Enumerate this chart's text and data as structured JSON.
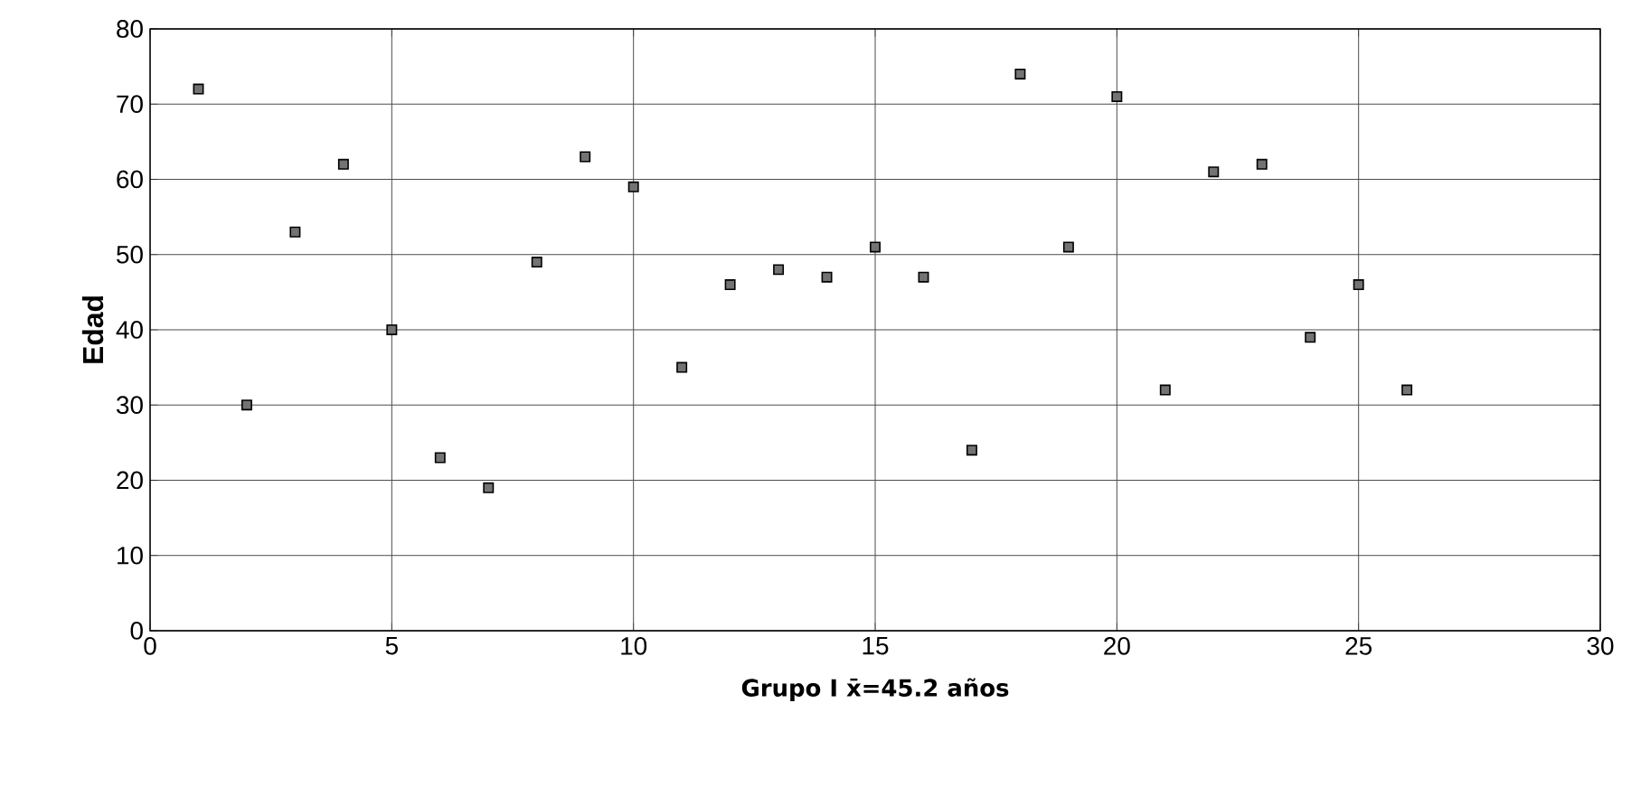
{
  "chart_data": {
    "type": "scatter",
    "xlabel": "Grupo I x̄=45.2 años",
    "ylabel": "Edad",
    "x": [
      1,
      2,
      3,
      4,
      5,
      6,
      7,
      8,
      9,
      10,
      11,
      12,
      13,
      14,
      15,
      16,
      17,
      18,
      19,
      20,
      21,
      22,
      23,
      24,
      25,
      26
    ],
    "series": [
      {
        "color": "#000000",
        "values": [
          72,
          30,
          53,
          62,
          40,
          23,
          19,
          49,
          63,
          59,
          35,
          46,
          48,
          47,
          51,
          47,
          24,
          74,
          51,
          71,
          32,
          61,
          62,
          39,
          46,
          32
        ]
      }
    ],
    "xlim": [
      0,
      30
    ],
    "ylim": [
      0,
      80
    ],
    "xticks": [
      0,
      5,
      10,
      15,
      20,
      25,
      30
    ],
    "yticks": [
      0,
      10,
      20,
      30,
      40,
      50,
      60,
      70,
      80
    ],
    "grid": true,
    "marker": "square"
  }
}
